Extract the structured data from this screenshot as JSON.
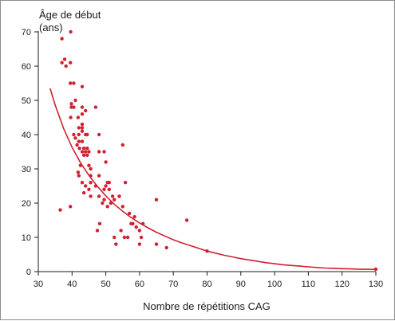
{
  "chart_data": {
    "type": "scatter",
    "ylabel_line1": "Âge de début",
    "ylabel_line2": "(ans)",
    "xlabel": "Nombre de répétitions CAG",
    "xlim": [
      30,
      130
    ],
    "ylim": [
      0,
      70
    ],
    "x_ticks": [
      "30",
      "40",
      "50",
      "60",
      "70",
      "80",
      "90",
      "100",
      "110",
      "120",
      "130"
    ],
    "y_ticks": [
      "0",
      "10",
      "20",
      "30",
      "40",
      "50",
      "60",
      "70"
    ],
    "grid": false,
    "legend": "none",
    "color": "#d1202f",
    "points": [
      [
        37,
        68
      ],
      [
        39.6,
        70
      ],
      [
        37.8,
        62
      ],
      [
        38.2,
        60
      ],
      [
        37,
        61
      ],
      [
        39.5,
        61
      ],
      [
        39.5,
        55
      ],
      [
        40.5,
        55
      ],
      [
        43,
        54
      ],
      [
        41,
        50
      ],
      [
        39.8,
        49
      ],
      [
        39.8,
        48
      ],
      [
        40.5,
        48
      ],
      [
        43,
        48
      ],
      [
        44,
        47
      ],
      [
        43,
        46
      ],
      [
        39.6,
        45
      ],
      [
        41.8,
        45
      ],
      [
        43,
        43
      ],
      [
        42,
        42
      ],
      [
        43,
        42
      ],
      [
        43,
        41
      ],
      [
        40.5,
        40
      ],
      [
        42,
        40
      ],
      [
        44,
        40
      ],
      [
        44.5,
        40
      ],
      [
        41,
        39
      ],
      [
        42,
        38
      ],
      [
        43,
        38
      ],
      [
        41.5,
        37
      ],
      [
        42.2,
        36
      ],
      [
        43.5,
        36
      ],
      [
        44.5,
        36
      ],
      [
        43,
        35
      ],
      [
        44,
        35
      ],
      [
        45,
        35
      ],
      [
        43.5,
        34
      ],
      [
        44.5,
        34
      ],
      [
        42.5,
        31
      ],
      [
        45,
        31
      ],
      [
        45.5,
        30
      ],
      [
        41.8,
        29
      ],
      [
        42,
        28
      ],
      [
        45.5,
        28
      ],
      [
        43,
        26
      ],
      [
        45.5,
        26
      ],
      [
        44,
        25
      ],
      [
        45,
        24
      ],
      [
        43.5,
        23
      ],
      [
        45.5,
        22
      ],
      [
        47,
        48
      ],
      [
        48,
        40
      ],
      [
        48,
        35
      ],
      [
        49.5,
        35
      ],
      [
        50,
        32
      ],
      [
        48,
        28
      ],
      [
        47,
        25
      ],
      [
        49.5,
        24
      ],
      [
        50,
        25
      ],
      [
        49.5,
        21
      ],
      [
        49,
        20
      ],
      [
        48,
        22
      ],
      [
        47.5,
        12
      ],
      [
        48.2,
        14
      ],
      [
        50.5,
        26
      ],
      [
        51,
        26
      ],
      [
        51,
        24
      ],
      [
        52,
        22
      ],
      [
        51.5,
        20
      ],
      [
        52.5,
        21
      ],
      [
        50.5,
        19
      ],
      [
        55,
        37
      ],
      [
        55.8,
        26
      ],
      [
        54,
        22
      ],
      [
        55,
        19
      ],
      [
        57,
        17
      ],
      [
        58,
        14
      ],
      [
        59,
        13
      ],
      [
        60,
        12
      ],
      [
        61,
        14
      ],
      [
        60.5,
        10
      ],
      [
        60,
        8
      ],
      [
        52.5,
        10
      ],
      [
        53,
        8
      ],
      [
        54.5,
        12
      ],
      [
        55.5,
        10
      ],
      [
        56.5,
        10
      ],
      [
        57.5,
        14
      ],
      [
        58.5,
        16
      ],
      [
        65,
        21
      ],
      [
        65,
        8
      ],
      [
        68,
        7
      ],
      [
        74,
        15
      ],
      [
        80,
        6
      ],
      [
        130,
        0.7
      ],
      [
        36.5,
        18
      ],
      [
        39.5,
        19
      ]
    ],
    "fit_curve": [
      [
        33.5,
        53.5
      ],
      [
        35,
        48.6
      ],
      [
        37.5,
        41.8
      ],
      [
        40,
        36.3
      ],
      [
        42.5,
        31.8
      ],
      [
        45,
        28.1
      ],
      [
        47.5,
        24.9
      ],
      [
        50,
        22.1
      ],
      [
        52.5,
        19.7
      ],
      [
        55,
        17.6
      ],
      [
        57.5,
        15.8
      ],
      [
        60,
        14.2
      ],
      [
        62.5,
        12.8
      ],
      [
        65,
        11.5
      ],
      [
        67.5,
        10.4
      ],
      [
        70,
        9.3
      ],
      [
        72.5,
        8.4
      ],
      [
        75,
        7.6
      ],
      [
        77.5,
        6.8
      ],
      [
        80,
        6.0
      ],
      [
        82.5,
        5.4
      ],
      [
        85,
        4.8
      ],
      [
        87.5,
        4.3
      ],
      [
        90,
        3.8
      ],
      [
        92.5,
        3.4
      ],
      [
        95,
        3.0
      ],
      [
        97.5,
        2.6
      ],
      [
        100,
        2.3
      ],
      [
        102.5,
        2.0
      ],
      [
        105,
        1.8
      ],
      [
        107.5,
        1.6
      ],
      [
        110,
        1.4
      ],
      [
        112.5,
        1.2
      ],
      [
        115,
        1.05
      ],
      [
        117.5,
        0.95
      ],
      [
        120,
        0.85
      ],
      [
        122.5,
        0.78
      ],
      [
        125,
        0.72
      ],
      [
        127.5,
        0.68
      ],
      [
        130,
        0.65
      ]
    ]
  }
}
